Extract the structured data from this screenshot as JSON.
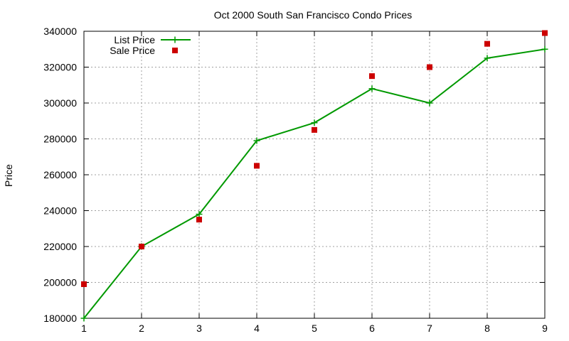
{
  "chart_data": {
    "type": "line",
    "title": "Oct 2000 South San Francisco Condo Prices",
    "xlabel": "",
    "ylabel": "Price",
    "x": [
      1,
      2,
      3,
      4,
      5,
      6,
      7,
      8,
      9
    ],
    "xlim": [
      1,
      9
    ],
    "ylim": [
      180000,
      340000
    ],
    "x_ticks": [
      "1",
      "2",
      "3",
      "4",
      "5",
      "6",
      "7",
      "8",
      "9"
    ],
    "y_ticks": [
      "180000",
      "200000",
      "220000",
      "240000",
      "260000",
      "280000",
      "300000",
      "320000",
      "340000"
    ],
    "grid": true,
    "legend_position": "top-left",
    "series": [
      {
        "name": "List Price",
        "style": "lines+points",
        "marker": "plus",
        "color": "#009900",
        "values": [
          180000,
          220000,
          238000,
          279000,
          289000,
          308000,
          300000,
          325000,
          330000
        ]
      },
      {
        "name": "Sale Price",
        "style": "points",
        "marker": "square",
        "color": "#cc0000",
        "values": [
          199000,
          220000,
          235000,
          265000,
          285000,
          315000,
          320000,
          333000,
          339000
        ]
      }
    ]
  }
}
